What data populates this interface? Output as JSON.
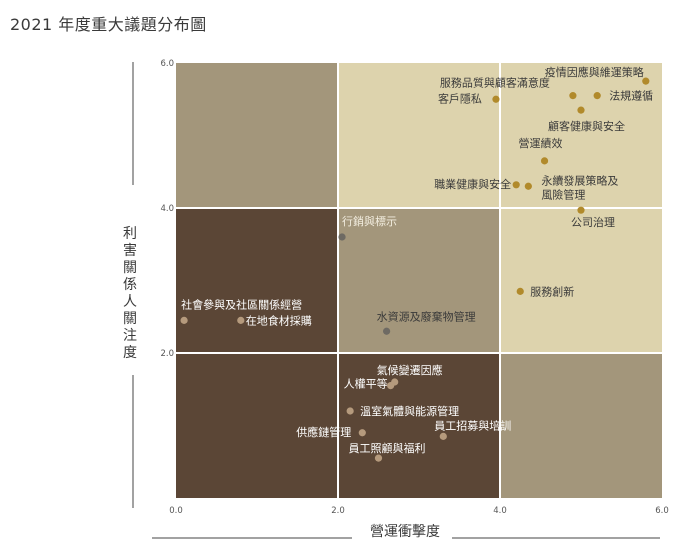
{
  "title": "2021 年度重大議題分布圖",
  "chart_data": {
    "type": "scatter",
    "title": "2021 年度重大議題分布圖",
    "xlabel": "營運衝擊度",
    "ylabel": "利害關係人關注度",
    "xlim": [
      0,
      6
    ],
    "ylim": [
      0,
      6
    ],
    "xticks": [
      "0.0",
      "2.0",
      "4.0",
      "6.0"
    ],
    "yticks": [
      "2.0",
      "4.0",
      "6.0"
    ],
    "quadrant_colors": {
      "dark": "#5b4636",
      "medium": "#a3967b",
      "light": "#ddd3ad",
      "top_left": "#a3967b"
    },
    "point_colors": {
      "high": "#b18a2b",
      "mid": "#6e6a63",
      "low": "#b59a7d"
    },
    "points": [
      {
        "label": "疫情因應與維運策略",
        "x": 5.8,
        "y": 5.75,
        "tier": "high"
      },
      {
        "label": "服務品質與顧客滿意度",
        "x": 4.9,
        "y": 5.55,
        "tier": "high"
      },
      {
        "label": "法規遵循",
        "x": 5.2,
        "y": 5.55,
        "tier": "high"
      },
      {
        "label": "客戶隱私",
        "x": 3.95,
        "y": 5.5,
        "tier": "high"
      },
      {
        "label": "顧客健康與安全",
        "x": 5.0,
        "y": 5.35,
        "tier": "high"
      },
      {
        "label": "營運績效",
        "x": 4.55,
        "y": 4.65,
        "tier": "high"
      },
      {
        "label": "永續發展策略及風險管理",
        "x": 4.35,
        "y": 4.3,
        "tier": "high"
      },
      {
        "label": "職業健康與安全",
        "x": 4.2,
        "y": 4.32,
        "tier": "high"
      },
      {
        "label": "公司治理",
        "x": 5.0,
        "y": 3.97,
        "tier": "high"
      },
      {
        "label": "服務創新",
        "x": 4.25,
        "y": 2.85,
        "tier": "high"
      },
      {
        "label": "行銷與標示",
        "x": 2.05,
        "y": 3.6,
        "tier": "mid"
      },
      {
        "label": "水資源及廢棄物管理",
        "x": 2.6,
        "y": 2.3,
        "tier": "mid"
      },
      {
        "label": "社會參與及社區關係經營",
        "x": 0.1,
        "y": 2.45,
        "tier": "low"
      },
      {
        "label": "在地食材採購",
        "x": 0.8,
        "y": 2.45,
        "tier": "low"
      },
      {
        "label": "氣候變遷因應",
        "x": 2.7,
        "y": 1.6,
        "tier": "low"
      },
      {
        "label": "人權平等",
        "x": 2.65,
        "y": 1.55,
        "tier": "low"
      },
      {
        "label": "溫室氣體與能源管理",
        "x": 2.15,
        "y": 1.2,
        "tier": "low"
      },
      {
        "label": "供應鏈管理",
        "x": 2.3,
        "y": 0.9,
        "tier": "low"
      },
      {
        "label": "員工招募與培訓",
        "x": 3.3,
        "y": 0.85,
        "tier": "low"
      },
      {
        "label": "員工照顧與福利",
        "x": 2.5,
        "y": 0.55,
        "tier": "low"
      }
    ]
  }
}
